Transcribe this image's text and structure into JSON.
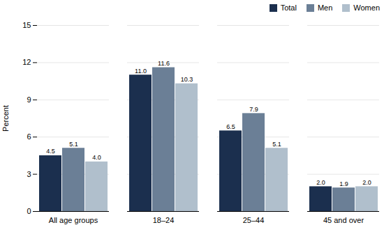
{
  "chart_data": {
    "type": "bar",
    "categories": [
      "All age groups",
      "18–24",
      "25–44",
      "45 and over"
    ],
    "series": [
      {
        "name": "Total",
        "color": "#1b2f4e",
        "values": [
          4.5,
          11.0,
          6.5,
          2.0
        ],
        "value_labels": [
          "4.5",
          "11.0",
          "6.5",
          "2.0"
        ]
      },
      {
        "name": "Men",
        "color": "#6b7f96",
        "values": [
          5.1,
          11.6,
          7.9,
          1.9
        ],
        "value_labels": [
          "5.1",
          "11.6",
          "7.9",
          "1.9"
        ]
      },
      {
        "name": "Women",
        "color": "#b0bfcc",
        "values": [
          4.0,
          10.3,
          5.1,
          2.0
        ],
        "value_labels": [
          "4.0",
          "10.3",
          "5.1",
          "2.0"
        ]
      }
    ],
    "y_label": "Percent",
    "ylim": [
      0,
      15
    ],
    "yticks": [
      0,
      3,
      6,
      9,
      12,
      15
    ],
    "grid": true,
    "legend": "upper right",
    "data_labels": true
  }
}
